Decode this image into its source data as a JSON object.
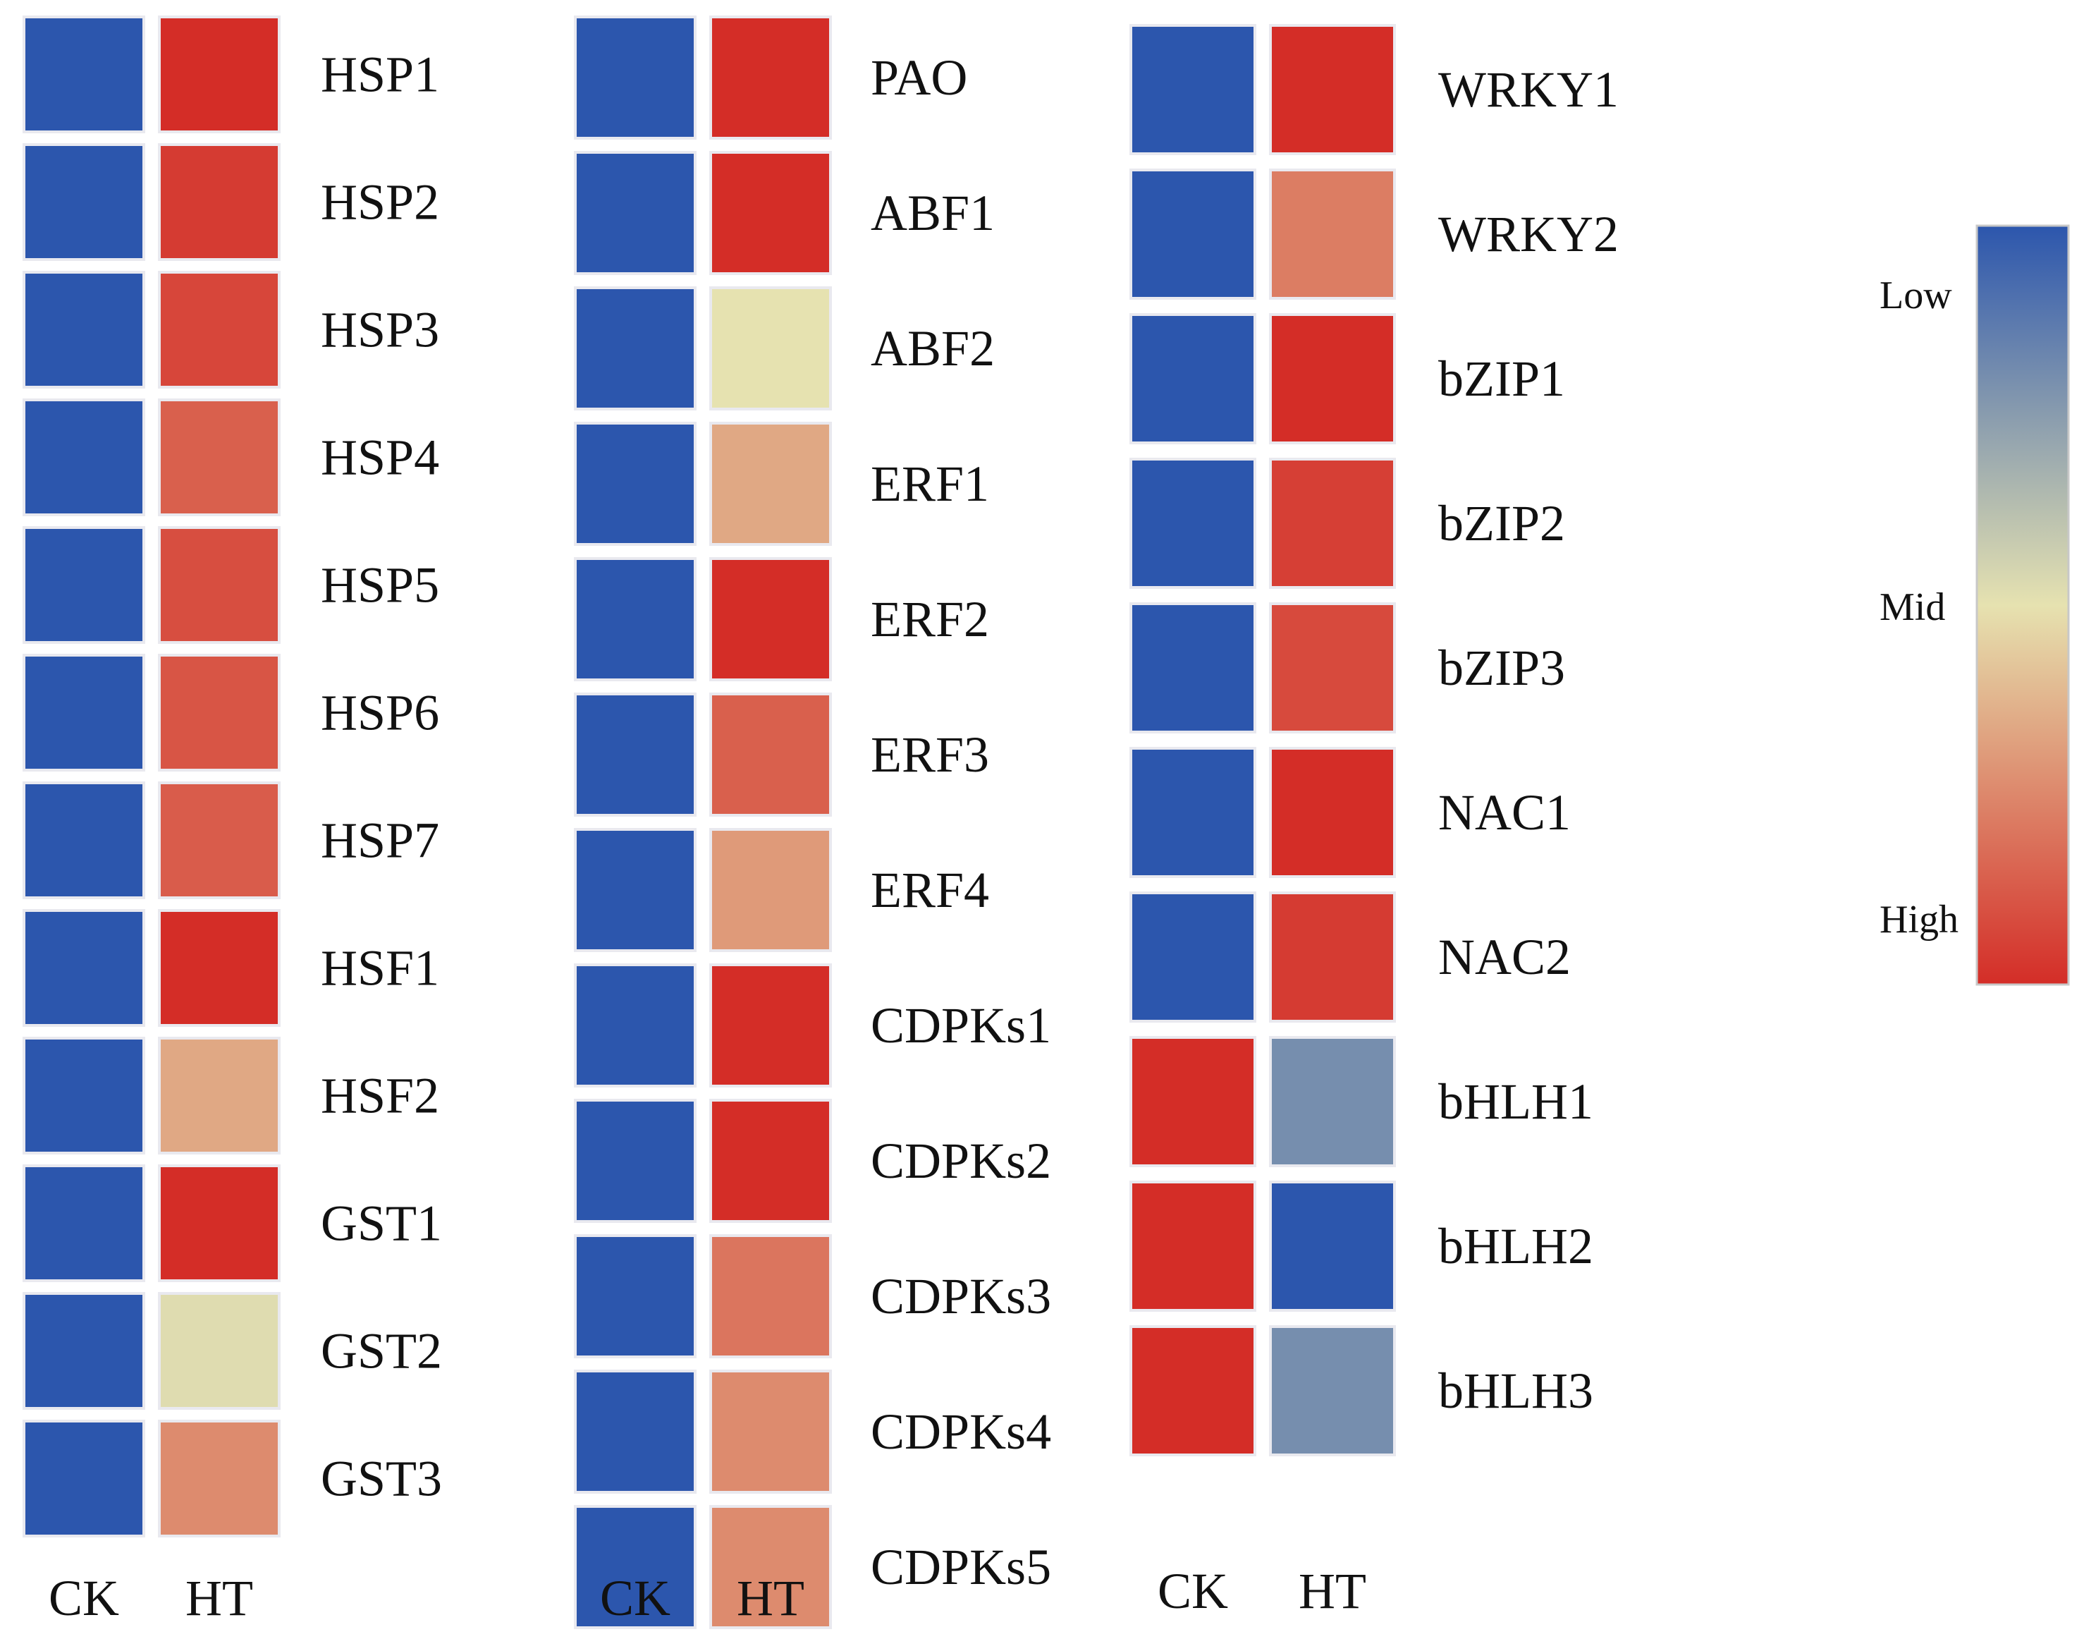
{
  "chart_data": {
    "type": "heatmap",
    "columns": [
      "CK",
      "HT"
    ],
    "scale": {
      "labels": [
        "Low",
        "Mid",
        "High"
      ],
      "colors": [
        "#2c56ad",
        "#e6e2b0",
        "#d42d27"
      ]
    },
    "panels": [
      {
        "rows": [
          {
            "gene": "HSP1",
            "values": [
              0.0,
              1.0
            ]
          },
          {
            "gene": "HSP2",
            "values": [
              0.0,
              0.96
            ]
          },
          {
            "gene": "HSP3",
            "values": [
              0.0,
              0.93
            ]
          },
          {
            "gene": "HSP4",
            "values": [
              0.0,
              0.86
            ]
          },
          {
            "gene": "HSP5",
            "values": [
              0.0,
              0.91
            ]
          },
          {
            "gene": "HSP6",
            "values": [
              0.0,
              0.89
            ]
          },
          {
            "gene": "HSP7",
            "values": [
              0.0,
              0.87
            ]
          },
          {
            "gene": "HSF1",
            "values": [
              0.0,
              1.0
            ]
          },
          {
            "gene": "HSF2",
            "values": [
              0.0,
              0.66
            ]
          },
          {
            "gene": "GST1",
            "values": [
              0.0,
              1.0
            ]
          },
          {
            "gene": "GST2",
            "values": [
              0.0,
              0.48
            ]
          },
          {
            "gene": "GST3",
            "values": [
              0.0,
              0.74
            ]
          }
        ]
      },
      {
        "rows": [
          {
            "gene": "PAO",
            "values": [
              0.0,
              1.0
            ]
          },
          {
            "gene": "ABF1",
            "values": [
              0.0,
              1.0
            ]
          },
          {
            "gene": "ABF2",
            "values": [
              0.0,
              0.5
            ]
          },
          {
            "gene": "ERF1",
            "values": [
              0.0,
              0.66
            ]
          },
          {
            "gene": "ERF2",
            "values": [
              0.0,
              1.0
            ]
          },
          {
            "gene": "ERF3",
            "values": [
              0.0,
              0.86
            ]
          },
          {
            "gene": "ERF4",
            "values": [
              0.0,
              0.7
            ]
          },
          {
            "gene": "CDPKs1",
            "values": [
              0.0,
              1.0
            ]
          },
          {
            "gene": "CDPKs2",
            "values": [
              0.0,
              1.0
            ]
          },
          {
            "gene": "CDPKs3",
            "values": [
              0.0,
              0.8
            ]
          },
          {
            "gene": "CDPKs4",
            "values": [
              0.0,
              0.74
            ]
          },
          {
            "gene": "CDPKs5",
            "values": [
              0.0,
              0.74
            ]
          }
        ]
      },
      {
        "rows": [
          {
            "gene": "WRKY1",
            "values": [
              0.0,
              1.0
            ]
          },
          {
            "gene": "WRKY2",
            "values": [
              0.0,
              0.78
            ]
          },
          {
            "gene": "bZIP1",
            "values": [
              0.0,
              1.0
            ]
          },
          {
            "gene": "bZIP2",
            "values": [
              0.0,
              0.95
            ]
          },
          {
            "gene": "bZIP3",
            "values": [
              0.0,
              0.92
            ]
          },
          {
            "gene": "NAC1",
            "values": [
              0.0,
              1.0
            ]
          },
          {
            "gene": "NAC2",
            "values": [
              0.0,
              0.96
            ]
          },
          {
            "gene": "bHLH1",
            "values": [
              1.0,
              0.2
            ]
          },
          {
            "gene": "bHLH2",
            "values": [
              1.0,
              0.0
            ]
          },
          {
            "gene": "bHLH3",
            "values": [
              1.0,
              0.2
            ]
          }
        ]
      }
    ]
  }
}
